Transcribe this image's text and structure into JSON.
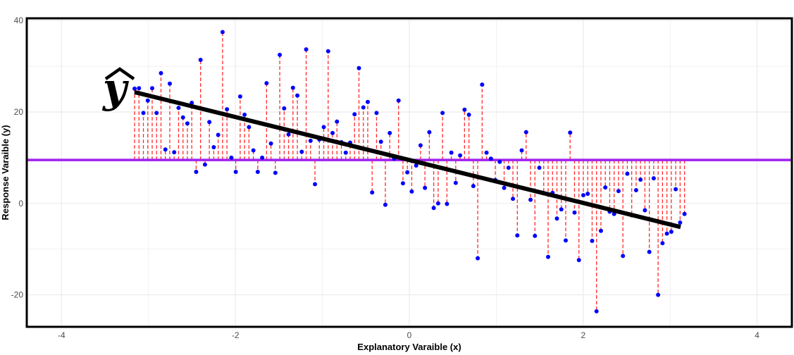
{
  "chart_data": {
    "type": "scatter",
    "title": "",
    "xlabel": "Explanatory Varaible (x)",
    "ylabel": "Response Varaible (y)",
    "xlim": [
      -4.4,
      4.4
    ],
    "ylim": [
      -27,
      40.5
    ],
    "x_ticks": [
      -4,
      -2,
      0,
      2,
      4
    ],
    "x_tick_labels": [
      "-4",
      "-2",
      "0",
      "2",
      "4"
    ],
    "y_ticks": [
      40,
      20,
      0,
      -20
    ],
    "y_tick_labels": [
      "40",
      "20",
      "0",
      "-20"
    ],
    "grid": true,
    "annotation": "ŷ",
    "mean_y": 9.5,
    "regression": {
      "intercept": 9.5,
      "slope": -4.7,
      "x_range": [
        -3.16,
        3.12
      ]
    },
    "x_start": -3.16,
    "x_step": 0.0506,
    "y": [
      25.1,
      25.2,
      19.8,
      22.5,
      25.2,
      19.8,
      28.5,
      11.8,
      26.2,
      11.2,
      20.9,
      18.8,
      17.5,
      22.0,
      6.9,
      31.4,
      8.5,
      17.8,
      12.3,
      15.0,
      37.5,
      20.6,
      10.0,
      6.9,
      23.4,
      19.4,
      16.7,
      11.6,
      6.9,
      10.0,
      26.3,
      13.1,
      6.7,
      32.5,
      20.8,
      15.1,
      25.3,
      23.6,
      11.3,
      33.7,
      13.7,
      4.2,
      14.0,
      16.7,
      33.3,
      15.4,
      17.9,
      13.4,
      11.1,
      13.3,
      19.5,
      29.6,
      21.0,
      22.2,
      2.4,
      19.8,
      13.5,
      -0.3,
      15.4,
      9.8,
      22.5,
      4.4,
      6.8,
      2.6,
      8.3,
      12.7,
      3.4,
      15.6,
      -1.0,
      0.0,
      19.8,
      -0.1,
      11.1,
      4.5,
      10.5,
      20.5,
      19.4,
      3.8,
      -12.0,
      26.0,
      11.1,
      9.8,
      5.1,
      9.1,
      3.4,
      7.8,
      1.0,
      -7.0,
      11.6,
      15.6,
      0.8,
      -7.1,
      7.8,
      2.2,
      -11.7,
      2.3,
      -3.3,
      -1.3,
      -8.1,
      15.5,
      -2.0,
      -12.4,
      1.8,
      2.1,
      -8.2,
      -23.6,
      -6.0,
      3.5,
      -1.8,
      -2.3,
      2.7,
      -11.5,
      6.5,
      -2.6,
      2.9,
      5.2,
      -1.5,
      -10.6,
      5.5,
      -20.0,
      -8.7,
      -6.6,
      -6.2,
      3.1,
      -4.2,
      -2.3
    ],
    "colors": {
      "points": "#0000ff",
      "residuals": "#ff2a2a",
      "mean_line": "#a020f0",
      "regression_line": "#000000",
      "grid": "#ebebeb"
    }
  }
}
